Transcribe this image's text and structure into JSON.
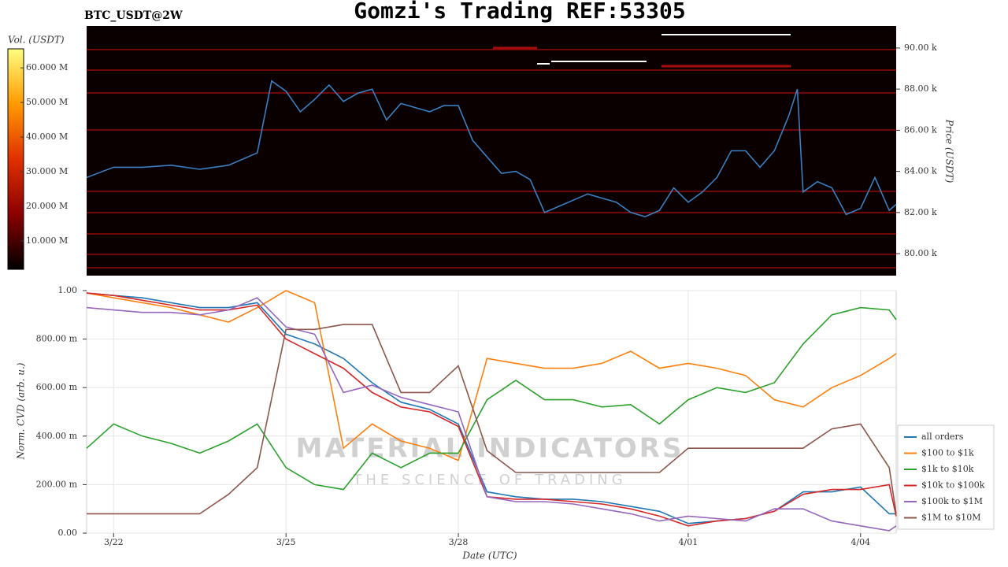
{
  "chart_data": [
    {
      "type": "line",
      "title": "Gomzi's Trading REF:53305",
      "subtitle": "BTC_USDT@2W",
      "y_label": "Price (USDT)",
      "x": [
        -0.47,
        0,
        0.5,
        1,
        1.5,
        2,
        2.5,
        2.75,
        3,
        3.25,
        3.5,
        3.75,
        4,
        4.25,
        4.5,
        4.75,
        5,
        5.5,
        5.75,
        6,
        6.25,
        6.5,
        6.75,
        7,
        7.25,
        7.5,
        7.75,
        8,
        8.25,
        8.5,
        8.75,
        9,
        9.25,
        9.5,
        9.75,
        10,
        10.25,
        10.5,
        10.75,
        11,
        11.25,
        11.5,
        11.75,
        11.9,
        12,
        12.25,
        12.5,
        12.75,
        13,
        13.25,
        13.5,
        13.62
      ],
      "series": [
        {
          "color": "#3a7fc1",
          "values": [
            83700,
            84200,
            84200,
            84300,
            84100,
            84300,
            84900,
            88400,
            87900,
            86900,
            87500,
            88200,
            87400,
            87800,
            88000,
            86500,
            87300,
            86900,
            87200,
            87200,
            85500,
            84700,
            83900,
            84000,
            83600,
            82000,
            82300,
            82600,
            82900,
            82700,
            82500,
            82000,
            81800,
            82100,
            83200,
            82500,
            83000,
            83700,
            85000,
            85000,
            84200,
            85000,
            86700,
            88000,
            83000,
            83500,
            83200,
            81900,
            82200,
            83700,
            82100,
            82400
          ]
        }
      ],
      "xlim": [
        -0.47,
        13.62
      ],
      "ylim": [
        78930,
        91070
      ],
      "yticks": [
        {
          "value": 80000,
          "label": "80.00 k"
        },
        {
          "value": 82000,
          "label": "82.00 k"
        },
        {
          "value": 84000,
          "label": "84.00 k"
        },
        {
          "value": 86000,
          "label": "86.00 k"
        },
        {
          "value": 88000,
          "label": "88.00 k"
        },
        {
          "value": 90000,
          "label": "90.00 k"
        }
      ],
      "colorbar": {
        "label": "Vol. (USDT)",
        "lim": [
          1800000,
          65500000
        ],
        "colors": [
          "#000000",
          "#8b0000",
          "#e03000",
          "#ff9a00",
          "#ffff80"
        ],
        "ticks": [
          {
            "value": 10000000,
            "label": "10.000 M"
          },
          {
            "value": 20000000,
            "label": "20.000 M"
          },
          {
            "value": 30000000,
            "label": "30.000 M"
          },
          {
            "value": 40000000,
            "label": "40.000 M"
          },
          {
            "value": 50000000,
            "label": "50.000 M"
          },
          {
            "value": 60000000,
            "label": "60.000 M"
          }
        ]
      }
    },
    {
      "type": "line",
      "x_label": "Date (UTC)",
      "y_label": "Norm. CVD (arb. u.)",
      "watermark": [
        "MATERIAL INDICATORS",
        "THE SCIENCE OF TRADING"
      ],
      "x": [
        -0.47,
        0,
        0.5,
        1,
        1.5,
        2,
        2.5,
        3,
        3.5,
        4,
        4.5,
        5,
        5.5,
        6,
        6.5,
        7,
        7.5,
        8,
        8.5,
        9,
        9.5,
        10,
        10.5,
        11,
        11.5,
        12,
        12.5,
        13,
        13.5,
        13.62
      ],
      "xlim": [
        -0.47,
        13.62
      ],
      "ylim": [
        0,
        1
      ],
      "xticks": [
        {
          "value": 0,
          "label": "3/22"
        },
        {
          "value": 3,
          "label": "3/25"
        },
        {
          "value": 6,
          "label": "3/28"
        },
        {
          "value": 10,
          "label": "4/01"
        },
        {
          "value": 13,
          "label": "4/04"
        }
      ],
      "yticks": [
        {
          "value": 0,
          "label": "0.00"
        },
        {
          "value": 0.2,
          "label": "200.00 m"
        },
        {
          "value": 0.4,
          "label": "400.00 m"
        },
        {
          "value": 0.6,
          "label": "600.00 m"
        },
        {
          "value": 0.8,
          "label": "800.00 m"
        },
        {
          "value": 1,
          "label": "1.00"
        }
      ],
      "grid": true,
      "legend": "lower right",
      "series": [
        {
          "name": "all orders",
          "color": "#1f77b4",
          "values": [
            0.99,
            0.98,
            0.97,
            0.95,
            0.93,
            0.93,
            0.95,
            0.82,
            0.78,
            0.72,
            0.62,
            0.54,
            0.51,
            0.45,
            0.17,
            0.15,
            0.14,
            0.14,
            0.13,
            0.11,
            0.09,
            0.04,
            0.05,
            0.06,
            0.09,
            0.17,
            0.17,
            0.19,
            0.08,
            0.08
          ]
        },
        {
          "name": "$100 to $1k",
          "color": "#ff7f0e",
          "values": [
            0.99,
            0.97,
            0.95,
            0.93,
            0.9,
            0.87,
            0.93,
            1.0,
            0.95,
            0.35,
            0.45,
            0.38,
            0.35,
            0.3,
            0.72,
            0.7,
            0.68,
            0.68,
            0.7,
            0.75,
            0.68,
            0.7,
            0.68,
            0.65,
            0.55,
            0.52,
            0.6,
            0.65,
            0.72,
            0.74
          ]
        },
        {
          "name": "$1k to $10k",
          "color": "#2ca02c",
          "values": [
            0.35,
            0.45,
            0.4,
            0.37,
            0.33,
            0.38,
            0.45,
            0.27,
            0.2,
            0.18,
            0.33,
            0.27,
            0.33,
            0.33,
            0.55,
            0.63,
            0.55,
            0.55,
            0.52,
            0.53,
            0.45,
            0.55,
            0.6,
            0.58,
            0.62,
            0.78,
            0.9,
            0.93,
            0.92,
            0.88
          ]
        },
        {
          "name": "$10k to $100k",
          "color": "#d62728",
          "values": [
            0.99,
            0.98,
            0.96,
            0.94,
            0.92,
            0.92,
            0.94,
            0.8,
            0.74,
            0.68,
            0.58,
            0.52,
            0.5,
            0.44,
            0.15,
            0.14,
            0.14,
            0.13,
            0.12,
            0.1,
            0.07,
            0.03,
            0.05,
            0.06,
            0.09,
            0.16,
            0.18,
            0.18,
            0.2,
            0.07
          ]
        },
        {
          "name": "$100k to $1M",
          "color": "#9467bd",
          "values": [
            0.93,
            0.92,
            0.91,
            0.91,
            0.9,
            0.92,
            0.97,
            0.85,
            0.82,
            0.58,
            0.61,
            0.56,
            0.53,
            0.5,
            0.15,
            0.13,
            0.13,
            0.12,
            0.1,
            0.08,
            0.05,
            0.07,
            0.06,
            0.05,
            0.1,
            0.1,
            0.05,
            0.03,
            0.01,
            0.03
          ]
        },
        {
          "name": "$1M to $10M",
          "color": "#8c564b",
          "values": [
            0.08,
            0.08,
            0.08,
            0.08,
            0.08,
            0.16,
            0.27,
            0.84,
            0.84,
            0.86,
            0.86,
            0.58,
            0.58,
            0.69,
            0.34,
            0.25,
            0.25,
            0.25,
            0.25,
            0.25,
            0.25,
            0.35,
            0.35,
            0.35,
            0.35,
            0.35,
            0.43,
            0.45,
            0.27,
            0.08
          ]
        }
      ]
    }
  ]
}
